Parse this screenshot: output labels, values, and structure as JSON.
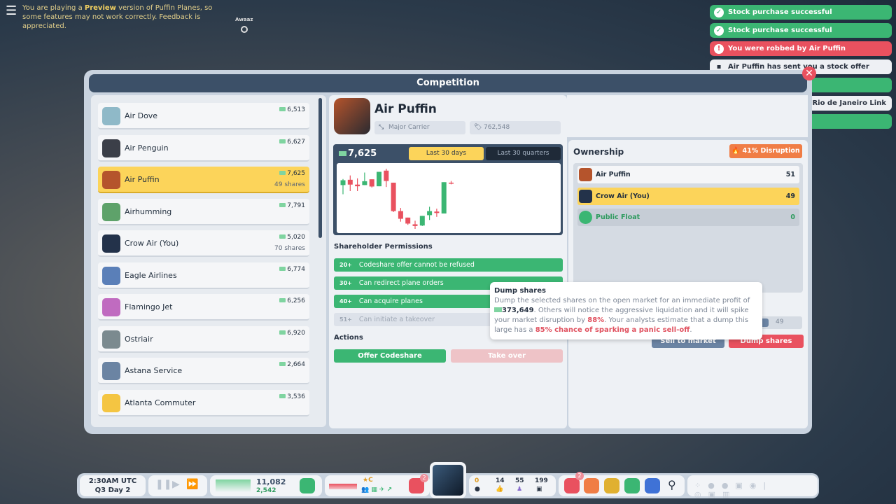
{
  "preview": {
    "pre": "You are playing a ",
    "bold": "Preview",
    "post": " version of Puffin Planes, so some features may not work correctly. Feedback is appreciated."
  },
  "map_label": "Awaaz",
  "toasts": [
    {
      "text": "Stock purchase successful",
      "type": "success",
      "icon": "check-icon"
    },
    {
      "text": "Stock purchase successful",
      "type": "success",
      "icon": "check-icon"
    },
    {
      "text": "You were robbed by Air Puffin",
      "type": "error",
      "icon": "alert-icon"
    },
    {
      "text": "Air Puffin has sent you a stock offer",
      "type": "info",
      "icon": "briefcase-icon"
    },
    {
      "text": "",
      "type": "success"
    },
    {
      "text": "from Rio de Janeiro Link",
      "type": "info"
    },
    {
      "text": "",
      "type": "success"
    }
  ],
  "window": {
    "title": "Competition"
  },
  "competitors": [
    {
      "name": "Air Dove",
      "value": "6,513",
      "shares": "",
      "color": "#8fb9c8"
    },
    {
      "name": "Air Penguin",
      "value": "6,627",
      "shares": "",
      "color": "#3b3f48"
    },
    {
      "name": "Air Puffin",
      "value": "7,625",
      "shares": "49 shares",
      "color": "#b5542c",
      "selected": true
    },
    {
      "name": "Airhumming",
      "value": "7,791",
      "shares": "",
      "color": "#5ea26a"
    },
    {
      "name": "Crow Air (You)",
      "value": "5,020",
      "shares": "70 shares",
      "color": "#23324a"
    },
    {
      "name": "Eagle Airlines",
      "value": "6,774",
      "shares": "",
      "color": "#5a7fb8"
    },
    {
      "name": "Flamingo Jet",
      "value": "6,256",
      "shares": "",
      "color": "#c06bc0"
    },
    {
      "name": "Ostriair",
      "value": "6,920",
      "shares": "",
      "color": "#7b8a8f"
    },
    {
      "name": "Astana Service",
      "value": "2,664",
      "shares": "",
      "color": "#6b84a3"
    },
    {
      "name": "Atlanta Commuter",
      "value": "3,536",
      "shares": "",
      "color": "#f4c542"
    }
  ],
  "company": {
    "name": "Air Puffin",
    "class": "Major Carrier",
    "valuation": "762,548",
    "price": "7,625"
  },
  "chart_tabs": [
    "Last 30 days",
    "Last 30 quarters"
  ],
  "chart_data": {
    "type": "candlestick",
    "period": "Last 30 days",
    "colors": {
      "up": "#3bb673",
      "down": "#e9515f"
    },
    "candles": [
      {
        "o": 200,
        "c": 220,
        "h": 225,
        "l": 162
      },
      {
        "o": 222,
        "c": 202,
        "h": 240,
        "l": 175
      },
      {
        "o": 202,
        "c": 195,
        "h": 228,
        "l": 175
      },
      {
        "o": 200,
        "c": 216,
        "h": 252,
        "l": 200
      },
      {
        "o": 224,
        "c": 194,
        "h": 224,
        "l": 190
      },
      {
        "o": 195,
        "c": 255,
        "h": 255,
        "l": 195
      },
      {
        "o": 260,
        "c": 217,
        "h": 268,
        "l": 192
      },
      {
        "o": 210,
        "c": 92,
        "h": 210,
        "l": 88
      },
      {
        "o": 92,
        "c": 60,
        "h": 105,
        "l": 48
      },
      {
        "o": 65,
        "c": 40,
        "h": 65,
        "l": 35
      },
      {
        "o": 37,
        "c": 30,
        "h": 52,
        "l": 18
      },
      {
        "o": 32,
        "c": 72,
        "h": 72,
        "l": 30
      },
      {
        "o": 75,
        "c": 92,
        "h": 110,
        "l": 55
      },
      {
        "o": 90,
        "c": 84,
        "h": 102,
        "l": 68
      },
      {
        "o": 82,
        "c": 212,
        "h": 212,
        "l": 82
      },
      {
        "o": 210,
        "c": 206,
        "h": 217,
        "l": 203
      }
    ]
  },
  "permissions": {
    "title": "Shareholder Permissions",
    "items": [
      {
        "threshold": "20+",
        "text": "Codeshare offer cannot be refused",
        "enabled": true
      },
      {
        "threshold": "30+",
        "text": "Can redirect plane orders",
        "enabled": true
      },
      {
        "threshold": "40+",
        "text": "Can acquire planes",
        "enabled": true
      },
      {
        "threshold": "51+",
        "text": "Can initiate a takeover",
        "enabled": false
      }
    ]
  },
  "actions": {
    "title": "Actions",
    "offer": "Offer Codeshare",
    "takeover": "Take over"
  },
  "ownership": {
    "title": "Ownership",
    "disruption": "41% Disruption",
    "rows": [
      {
        "name": "Air Puffin",
        "value": "51"
      },
      {
        "name": "Crow Air (You)",
        "value": "49"
      },
      {
        "name": "Public Float",
        "value": "0"
      }
    ],
    "slider_value": "49",
    "sell": "Sell to market",
    "dump": "Dump shares"
  },
  "tooltip": {
    "title": "Dump shares",
    "p1": "Dump the selected shares on the open market for an immediate profit of ",
    "amount": "373,649",
    "p2": ". Others will notice the aggressive liquidation and it will spike your market disruption by ",
    "pct": "88%",
    "p3": ". Your analysts estimate that a dump this large has a ",
    "chance": "85% chance of sparking a panic sell-off",
    "p4": "."
  },
  "bottom": {
    "time": "2:30AM UTC",
    "date": "Q3 Day 2",
    "cash": "11,082",
    "income": "2,542",
    "rating": "C",
    "notif_badge": "2",
    "route_badge": "2",
    "stats": [
      "0",
      "14",
      "55",
      "199"
    ]
  }
}
